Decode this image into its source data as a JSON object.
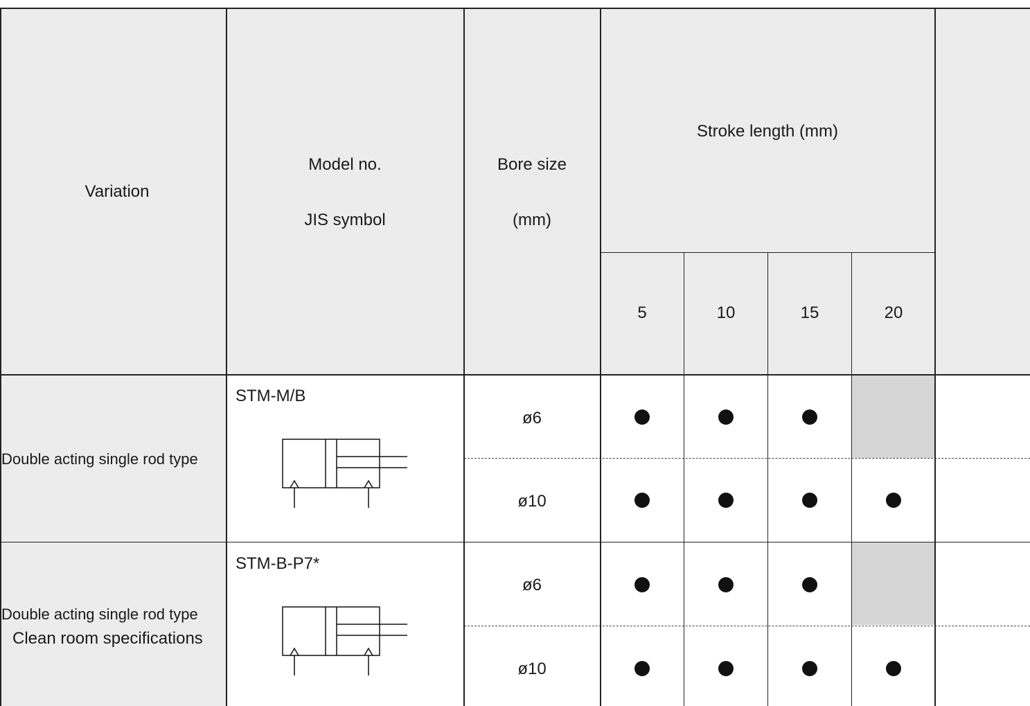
{
  "header": {
    "variation": "Variation",
    "model_no": "Model no.",
    "jis_symbol": "JIS symbol",
    "bore_size": "Bore size",
    "bore_unit": "(mm)",
    "stroke_length": "Stroke length (mm)",
    "strokes": [
      "5",
      "10",
      "15",
      "20"
    ]
  },
  "rows": [
    {
      "variation_line1": "Double acting single rod type",
      "variation_line2": "",
      "model": "STM-M/B",
      "symbol_icon": "double-acting-single-rod-cylinder-icon",
      "bores": [
        {
          "size": "ø6",
          "availability": [
            true,
            true,
            true,
            false
          ]
        },
        {
          "size": "ø10",
          "availability": [
            true,
            true,
            true,
            true
          ]
        }
      ]
    },
    {
      "variation_line1": "Double acting single rod type",
      "variation_line2": "Clean room specifications",
      "model": "STM-B-P7*",
      "symbol_icon": "double-acting-single-rod-cylinder-icon",
      "bores": [
        {
          "size": "ø6",
          "availability": [
            true,
            true,
            true,
            false
          ]
        },
        {
          "size": "ø10",
          "availability": [
            true,
            true,
            true,
            true
          ]
        }
      ]
    }
  ],
  "colors": {
    "header_bg": "#ececec",
    "unavailable_bg": "#d6d6d6",
    "dot": "#111111"
  }
}
